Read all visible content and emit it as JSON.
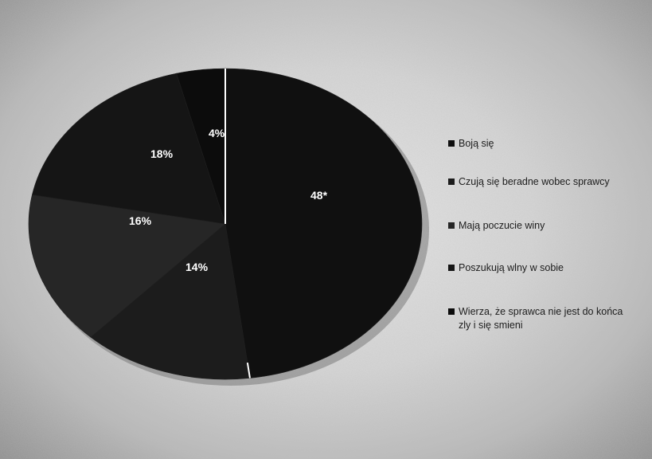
{
  "chart_data": {
    "type": "pie",
    "categories": [
      "Boją się",
      "Czują się beradne wobec sprawcy",
      "Mają poczucie winy",
      "Poszukują wlny w sobie",
      "Wierza, że sprawca nie jest do końca zly i się smieni"
    ],
    "values": [
      48,
      14,
      16,
      18,
      4
    ],
    "labels": [
      "48*",
      "14%",
      "16%",
      "18%",
      "4%"
    ],
    "colors": [
      "#101010",
      "#1c1c1c",
      "#262626",
      "#151515",
      "#0c0c0c"
    ],
    "legend": "right"
  }
}
